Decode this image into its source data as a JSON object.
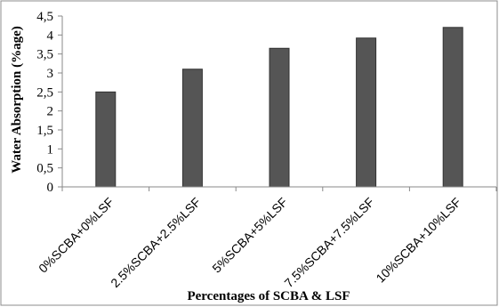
{
  "chart_data": {
    "type": "bar",
    "title": "",
    "xlabel": "Percentages of SCBA  & LSF",
    "ylabel": "Water Absorption  (%age)",
    "categories": [
      "0%SCBA+0%LSF",
      "2.5%SCBA+2.5%LSF",
      "5%SCBA+5%LSF",
      "7.5%SCBA+7.5%LSF",
      "10%SCBA+10%LSF"
    ],
    "values": [
      2.5,
      3.1,
      3.65,
      3.92,
      4.2
    ],
    "yticks": [
      "0",
      "0,5",
      "1",
      "1,5",
      "2",
      "2,5",
      "3",
      "3,5",
      "4",
      "4,5"
    ],
    "ylim": [
      0,
      4.5
    ],
    "grid": false,
    "legend": "none",
    "bar_color": "#555555"
  }
}
